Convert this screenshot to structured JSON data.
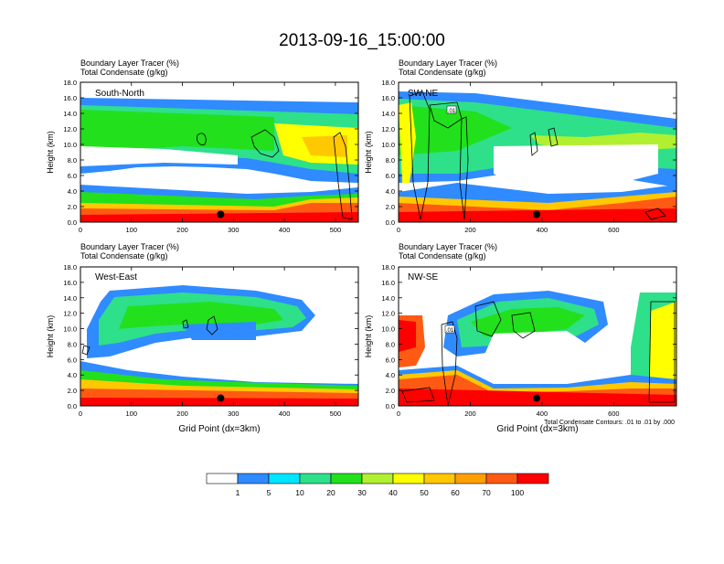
{
  "page_title": "2013-09-16_15:00:00",
  "footnote": "Total Condensate Contours: .01 to .01 by .000",
  "colors": {
    "scale": [
      "#ffffff",
      "#2f8bff",
      "#00e5ff",
      "#2ee08a",
      "#22e01c",
      "#b0f030",
      "#ffff00",
      "#ffc800",
      "#ffa000",
      "#ff5a14",
      "#ff0000"
    ]
  },
  "chart_data": [
    {
      "type": "heatmap",
      "title_line1": "Boundary Layer Tracer   (%)",
      "title_line2": "Total Condensate   (g/kg)",
      "panel_label": "South-North",
      "ylabel": "Height (km)",
      "xlabel": "",
      "ylim": [
        0,
        18
      ],
      "yticks": [
        "0.0",
        "2.0",
        "4.0",
        "6.0",
        "8.0",
        "10.0",
        "12.0",
        "14.0",
        "16.0",
        "18.0"
      ],
      "xlim": [
        0,
        545
      ],
      "xticks": [
        0,
        100,
        200,
        300,
        400,
        500
      ],
      "marker_x": 275,
      "marker_y": 1.0
    },
    {
      "type": "heatmap",
      "title_line1": "Boundary Layer Tracer   (%)",
      "title_line2": "Total Condensate   (g/kg)",
      "panel_label": "SW-NE",
      "ylabel": "Height (km)",
      "xlabel": "",
      "ylim": [
        0,
        18
      ],
      "yticks": [
        "0.0",
        "2.0",
        "4.0",
        "6.0",
        "8.0",
        "10.0",
        "12.0",
        "14.0",
        "16.0",
        "18.0"
      ],
      "xlim": [
        0,
        775
      ],
      "xticks": [
        0,
        200,
        400,
        600
      ],
      "marker_x": 385,
      "marker_y": 1.0,
      "contour_label": ".01"
    },
    {
      "type": "heatmap",
      "title_line1": "Boundary Layer Tracer   (%)",
      "title_line2": "Total Condensate   (g/kg)",
      "panel_label": "West-East",
      "ylabel": "Height (km)",
      "xlabel": "Grid Point (dx=3km)",
      "ylim": [
        0,
        18
      ],
      "yticks": [
        "0.0",
        "2.0",
        "4.0",
        "6.0",
        "8.0",
        "10.0",
        "12.0",
        "14.0",
        "16.0",
        "18.0"
      ],
      "xlim": [
        0,
        545
      ],
      "xticks": [
        0,
        100,
        200,
        300,
        400,
        500
      ],
      "marker_x": 275,
      "marker_y": 1.0
    },
    {
      "type": "heatmap",
      "title_line1": "Boundary Layer Tracer   (%)",
      "title_line2": "Total Condensate   (g/kg)",
      "panel_label": "NW-SE",
      "ylabel": "Height (km)",
      "xlabel": "Grid Point (dx=3km)",
      "ylim": [
        0,
        18
      ],
      "yticks": [
        "0.0",
        "2.0",
        "4.0",
        "6.0",
        "8.0",
        "10.0",
        "12.0",
        "14.0",
        "16.0",
        "18.0"
      ],
      "xlim": [
        0,
        775
      ],
      "xticks": [
        0,
        200,
        400,
        600
      ],
      "marker_x": 385,
      "marker_y": 1.0,
      "contour_label": ".01"
    }
  ],
  "legend": {
    "labels": [
      "1",
      "5",
      "10",
      "20",
      "30",
      "40",
      "50",
      "60",
      "70",
      "100"
    ]
  }
}
